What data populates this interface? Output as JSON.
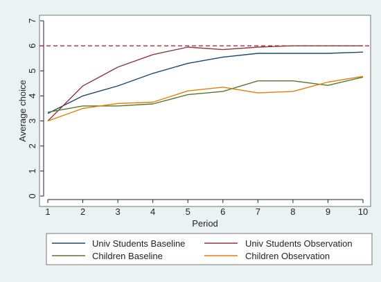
{
  "chart_data": {
    "type": "line",
    "title": "",
    "xlabel": "Period",
    "ylabel": "Average choice",
    "x": [
      1,
      2,
      3,
      4,
      5,
      6,
      7,
      8,
      9,
      10
    ],
    "xlim": [
      1,
      10
    ],
    "ylim": [
      0,
      7
    ],
    "y_ticks": [
      0,
      1,
      2,
      3,
      4,
      5,
      6,
      7
    ],
    "x_ticks": [
      1,
      2,
      3,
      4,
      5,
      6,
      7,
      8,
      9,
      10
    ],
    "reference_line": {
      "y": 6,
      "style": "dashed",
      "color": "#a1152f"
    },
    "grid": false,
    "legend_position": "bottom",
    "series": [
      {
        "name": "Univ Students Baseline",
        "color": "#1a476f",
        "values": [
          3.3,
          4.0,
          4.4,
          4.9,
          5.3,
          5.55,
          5.7,
          5.7,
          5.7,
          5.75
        ]
      },
      {
        "name": "Univ Students Observation",
        "color": "#90353b",
        "values": [
          3.0,
          4.4,
          5.15,
          5.65,
          5.95,
          5.85,
          5.95,
          6.0,
          6.0,
          6.0
        ]
      },
      {
        "name": "Children Baseline",
        "color": "#55752f",
        "values": [
          3.35,
          3.6,
          3.6,
          3.68,
          4.05,
          4.18,
          4.6,
          4.6,
          4.42,
          4.75
        ]
      },
      {
        "name": "Children Observation",
        "color": "#e37e00",
        "values": [
          3.0,
          3.5,
          3.7,
          3.75,
          4.2,
          4.35,
          4.12,
          4.18,
          4.55,
          4.78
        ]
      }
    ]
  }
}
